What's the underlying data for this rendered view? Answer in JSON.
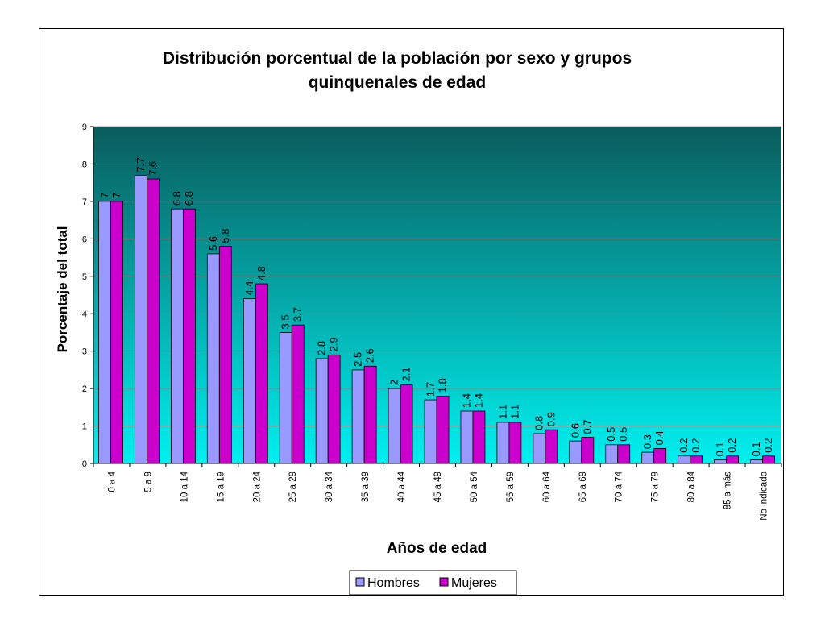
{
  "chart_data": {
    "type": "bar",
    "title": "Distribución porcentual de la población por sexo y grupos quinquenales de edad",
    "title_lines": [
      "Distribución porcentual de la población por sexo y grupos",
      "quinquenales de edad"
    ],
    "xlabel": "Años de edad",
    "ylabel": "Porcentaje del total",
    "ylim": [
      0,
      9
    ],
    "yticks": [
      0,
      1,
      2,
      3,
      4,
      5,
      6,
      7,
      8,
      9
    ],
    "grid": true,
    "legend_position": "bottom",
    "categories": [
      "0 a 4",
      "5 a 9",
      "10 a 14",
      "15 a 19",
      "20 a 24",
      "25 a 29",
      "30 a 34",
      "35 a 39",
      "40 a 44",
      "45 a 49",
      "50 a 54",
      "55 a 59",
      "60 a 64",
      "65 a 69",
      "70 a 74",
      "75 a 79",
      "80 a 84",
      "85 a más",
      "No indicado"
    ],
    "series": [
      {
        "name": "Hombres",
        "color": "#9999ff",
        "values": [
          7,
          7.7,
          6.8,
          5.6,
          4.4,
          3.5,
          2.8,
          2.5,
          2,
          1.7,
          1.4,
          1.1,
          0.8,
          0.6,
          0.5,
          0.3,
          0.2,
          0.1,
          0.1
        ]
      },
      {
        "name": "Mujeres",
        "color": "#cc00cc",
        "values": [
          7,
          7.6,
          6.8,
          5.8,
          4.8,
          3.7,
          2.9,
          2.6,
          2.1,
          1.8,
          1.4,
          1.1,
          0.9,
          0.7,
          0.5,
          0.4,
          0.2,
          0.2,
          0.2
        ]
      }
    ],
    "plot_background": {
      "top_color": "#0a5c5c",
      "bottom_color": "#00f0f0"
    }
  }
}
